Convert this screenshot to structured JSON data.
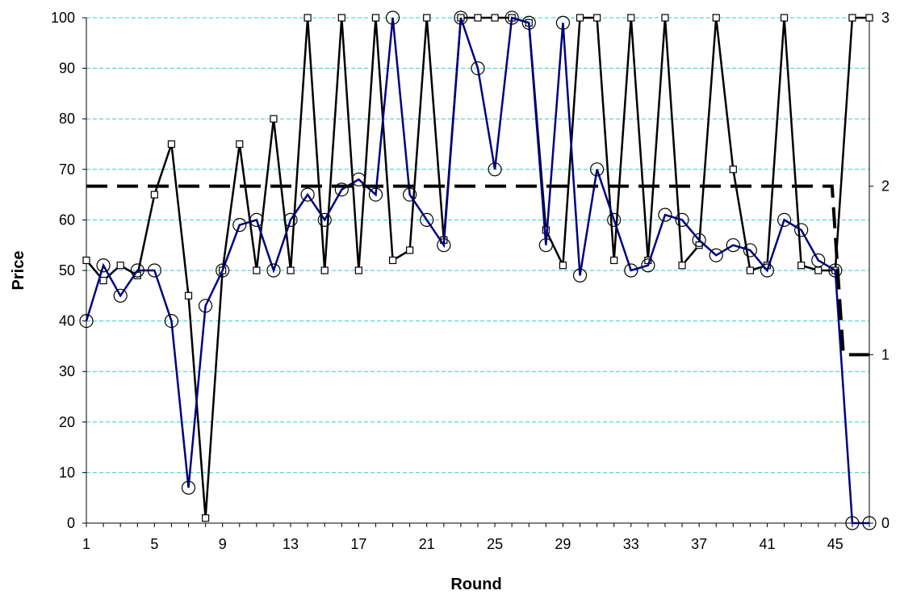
{
  "chart_data": {
    "type": "line",
    "title": "",
    "xlabel": "Round",
    "ylabel": "Price",
    "x": [
      1,
      2,
      3,
      4,
      5,
      6,
      7,
      8,
      9,
      10,
      11,
      12,
      13,
      14,
      15,
      16,
      17,
      18,
      19,
      20,
      21,
      22,
      23,
      24,
      25,
      26,
      27,
      28,
      29,
      30,
      31,
      32,
      33,
      34,
      35,
      36,
      37,
      38,
      39,
      40,
      41,
      42,
      43,
      44,
      45,
      46,
      47
    ],
    "xticks": [
      1,
      5,
      9,
      13,
      17,
      21,
      25,
      29,
      33,
      37,
      41,
      45
    ],
    "ylim": [
      0,
      100
    ],
    "yticks": [
      0,
      10,
      20,
      30,
      40,
      50,
      60,
      70,
      80,
      90,
      100
    ],
    "y2lim": [
      0,
      3
    ],
    "y2ticks": [
      0,
      1,
      2,
      3
    ],
    "grid": "horizontal dashed",
    "series": [
      {
        "marker": "square",
        "color": "#000000",
        "axis": "left",
        "values": [
          52,
          48,
          51,
          49,
          65,
          75,
          45,
          1,
          50,
          75,
          50,
          80,
          50,
          100,
          50,
          100,
          50,
          100,
          52,
          54,
          100,
          56,
          100,
          100,
          100,
          100,
          99,
          58,
          51,
          100,
          100,
          52,
          100,
          52,
          100,
          51,
          55,
          100,
          70,
          50,
          51,
          100,
          51,
          50,
          50,
          100,
          100
        ]
      },
      {
        "marker": "circle",
        "color": "#000080",
        "axis": "left",
        "values": [
          40,
          51,
          45,
          50,
          50,
          40,
          7,
          43,
          50,
          59,
          60,
          50,
          60,
          65,
          60,
          66,
          68,
          65,
          100,
          65,
          60,
          55,
          100,
          90,
          70,
          100,
          99,
          55,
          99,
          49,
          70,
          60,
          50,
          51,
          61,
          60,
          56,
          53,
          55,
          54,
          50,
          60,
          58,
          52,
          50,
          0,
          0
        ]
      },
      {
        "marker": "none",
        "color": "#000000",
        "axis": "right",
        "line": "dashed",
        "values": [
          2,
          2,
          2,
          2,
          2,
          2,
          2,
          2,
          2,
          2,
          2,
          2,
          2,
          2,
          2,
          2,
          2,
          2,
          2,
          2,
          2,
          2,
          2,
          2,
          2,
          2,
          2,
          2,
          2,
          2,
          2,
          2,
          2,
          2,
          2,
          2,
          2,
          2,
          2,
          2,
          2,
          2,
          2,
          2,
          2,
          1,
          1
        ]
      }
    ]
  }
}
